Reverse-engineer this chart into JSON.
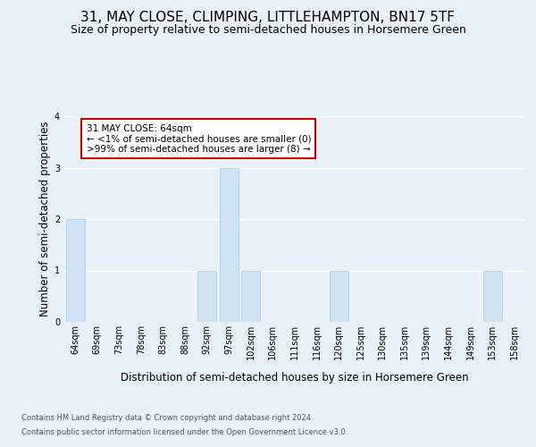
{
  "title": "31, MAY CLOSE, CLIMPING, LITTLEHAMPTON, BN17 5TF",
  "subtitle": "Size of property relative to semi-detached houses in Horsemere Green",
  "xlabel_dist": "Distribution of semi-detached houses by size in Horsemere Green",
  "ylabel": "Number of semi-detached properties",
  "footnote1": "Contains HM Land Registry data © Crown copyright and database right 2024.",
  "footnote2": "Contains public sector information licensed under the Open Government Licence v3.0.",
  "categories": [
    "64sqm",
    "69sqm",
    "73sqm",
    "78sqm",
    "83sqm",
    "88sqm",
    "92sqm",
    "97sqm",
    "102sqm",
    "106sqm",
    "111sqm",
    "116sqm",
    "120sqm",
    "125sqm",
    "130sqm",
    "135sqm",
    "139sqm",
    "144sqm",
    "149sqm",
    "153sqm",
    "158sqm"
  ],
  "values": [
    2,
    0,
    0,
    0,
    0,
    0,
    1,
    3,
    1,
    0,
    0,
    0,
    1,
    0,
    0,
    0,
    0,
    0,
    0,
    1,
    0
  ],
  "bar_color": "#cfe2f3",
  "bar_edge_color": "#a8c8e8",
  "annotation_text": "31 MAY CLOSE: 64sqm\n← <1% of semi-detached houses are smaller (0)\n>99% of semi-detached houses are larger (8) →",
  "annotation_box_color": "#ffffff",
  "annotation_box_edge": "#cc0000",
  "ylim": [
    0,
    4
  ],
  "yticks": [
    0,
    1,
    2,
    3,
    4
  ],
  "bg_color": "#eaf0f8",
  "plot_bg_color": "#eaf0f8",
  "grid_color": "#ffffff",
  "title_fontsize": 11,
  "subtitle_fontsize": 9,
  "axis_label_fontsize": 8.5,
  "tick_fontsize": 7,
  "annotation_fontsize": 7.5,
  "footnote_fontsize": 6
}
